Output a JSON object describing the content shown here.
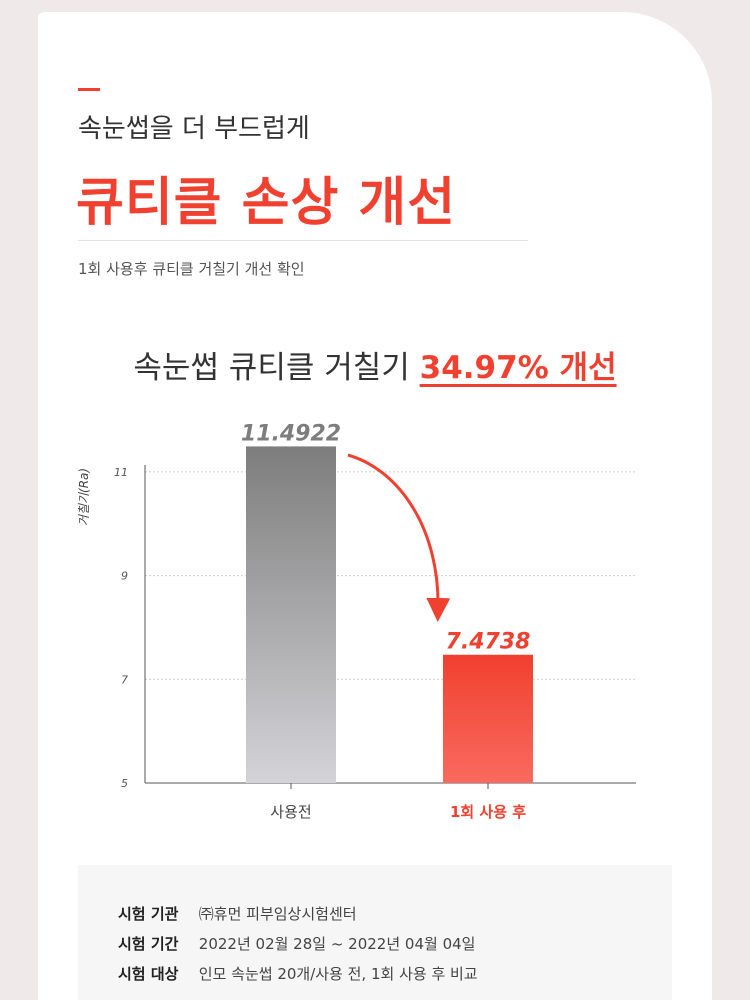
{
  "header": {
    "subtitle": "속눈썹을 더 부드럽게",
    "title": "큐티클 손상 개선",
    "description": "1회 사용후 큐티클 거칠기 개선 확인"
  },
  "headline": {
    "prefix": "속눈썹 큐티클 거칠기",
    "highlight": "34.97% 개선"
  },
  "chart_data": {
    "type": "bar",
    "y_label": "거칠기(Ra)",
    "categories": [
      "사용전",
      "1회 사용 후"
    ],
    "values": [
      11.4922,
      7.4738
    ],
    "colors": [
      "#7d7d7d",
      "#f0402f"
    ],
    "ylim": [
      5,
      11.5
    ],
    "yticks": [
      5,
      7,
      9,
      11
    ],
    "grid": true
  },
  "test_info": {
    "rows": [
      {
        "label": "시험 기관",
        "value": "㈜휴먼 피부임상시험센터"
      },
      {
        "label": "시험 기간",
        "value": "2022년 02월 28일 ~ 2022년 04월 04일"
      },
      {
        "label": "시험 대상",
        "value": "인모 속눈썹 20개/사용 전, 1회 사용 후 비교"
      }
    ]
  }
}
